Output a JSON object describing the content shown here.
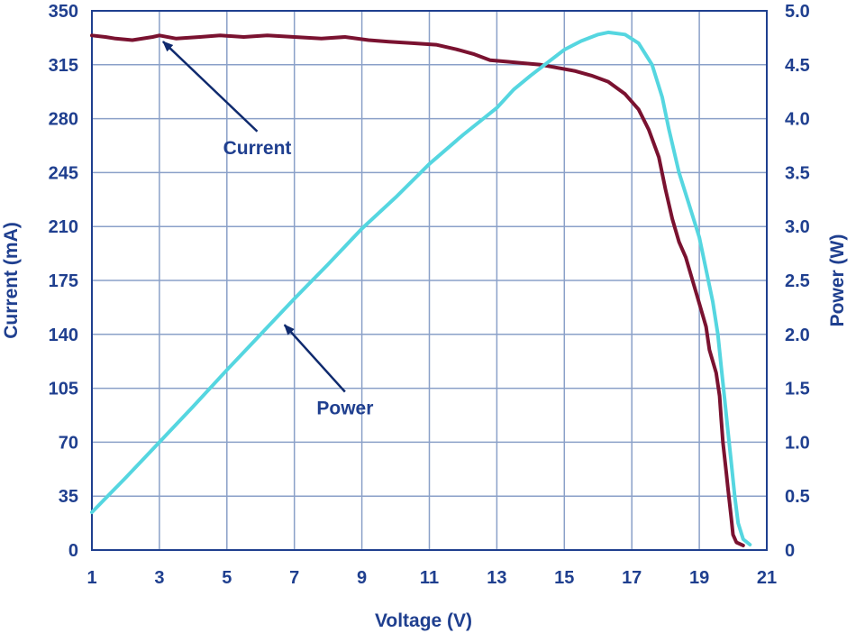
{
  "chart_data": {
    "type": "line",
    "xlabel": "Voltage (V)",
    "ylabel": "Current (mA)",
    "y2label": "Power (W)",
    "xlim": [
      1,
      21
    ],
    "ylim": [
      0,
      350
    ],
    "y2lim": [
      0,
      5.0
    ],
    "x_ticks": [
      "1",
      "3",
      "5",
      "7",
      "9",
      "11",
      "13",
      "15",
      "17",
      "19",
      "21"
    ],
    "y_ticks": [
      "0",
      "35",
      "70",
      "105",
      "140",
      "175",
      "210",
      "245",
      "280",
      "315",
      "350"
    ],
    "y2_ticks": [
      "0",
      "0.5",
      "1.0",
      "1.5",
      "2.0",
      "2.5",
      "3.0",
      "3.5",
      "4.0",
      "4.5",
      "5.0"
    ],
    "grid": true,
    "colors": {
      "axis": "#1f3f8f",
      "grid": "#8aa0c8",
      "current": "#7a1230",
      "power": "#55d6e0",
      "arrow": "#0f2a6e"
    },
    "series": [
      {
        "name": "Current",
        "axis": "left",
        "points": [
          [
            1.0,
            334
          ],
          [
            1.4,
            333
          ],
          [
            1.7,
            332
          ],
          [
            2.2,
            331
          ],
          [
            2.8,
            333
          ],
          [
            3.0,
            334
          ],
          [
            3.5,
            332
          ],
          [
            4.2,
            333
          ],
          [
            4.8,
            334
          ],
          [
            5.5,
            333
          ],
          [
            6.2,
            334
          ],
          [
            7.0,
            333
          ],
          [
            7.8,
            332
          ],
          [
            8.5,
            333
          ],
          [
            9.2,
            331
          ],
          [
            9.8,
            330
          ],
          [
            10.5,
            329
          ],
          [
            11.2,
            328
          ],
          [
            11.8,
            325
          ],
          [
            12.3,
            322
          ],
          [
            12.8,
            318
          ],
          [
            13.3,
            317
          ],
          [
            13.8,
            316
          ],
          [
            14.3,
            315
          ],
          [
            14.8,
            313
          ],
          [
            15.3,
            311
          ],
          [
            15.8,
            308
          ],
          [
            16.3,
            304
          ],
          [
            16.8,
            296
          ],
          [
            17.2,
            286
          ],
          [
            17.5,
            273
          ],
          [
            17.8,
            255
          ],
          [
            18.0,
            234
          ],
          [
            18.2,
            215
          ],
          [
            18.4,
            200
          ],
          [
            18.6,
            190
          ],
          [
            18.8,
            175
          ],
          [
            19.0,
            160
          ],
          [
            19.2,
            145
          ],
          [
            19.3,
            130
          ],
          [
            19.5,
            115
          ],
          [
            19.6,
            100
          ],
          [
            19.65,
            85
          ],
          [
            19.7,
            70
          ],
          [
            19.75,
            60
          ],
          [
            19.8,
            50
          ],
          [
            19.85,
            40
          ],
          [
            19.9,
            30
          ],
          [
            19.95,
            20
          ],
          [
            20.0,
            10
          ],
          [
            20.1,
            5
          ],
          [
            20.3,
            3
          ]
        ]
      },
      {
        "name": "Power",
        "axis": "right",
        "points": [
          [
            1.0,
            0.35
          ],
          [
            2.0,
            0.67
          ],
          [
            3.0,
            1.0
          ],
          [
            4.0,
            1.33
          ],
          [
            5.0,
            1.67
          ],
          [
            6.0,
            2.0
          ],
          [
            7.0,
            2.33
          ],
          [
            8.0,
            2.65
          ],
          [
            9.0,
            2.98
          ],
          [
            10.0,
            3.27
          ],
          [
            11.0,
            3.58
          ],
          [
            12.0,
            3.85
          ],
          [
            13.0,
            4.1
          ],
          [
            13.5,
            4.27
          ],
          [
            14.0,
            4.4
          ],
          [
            14.5,
            4.52
          ],
          [
            15.0,
            4.64
          ],
          [
            15.5,
            4.72
          ],
          [
            16.0,
            4.78
          ],
          [
            16.3,
            4.8
          ],
          [
            16.8,
            4.78
          ],
          [
            17.2,
            4.7
          ],
          [
            17.6,
            4.5
          ],
          [
            17.9,
            4.2
          ],
          [
            18.1,
            3.9
          ],
          [
            18.4,
            3.5
          ],
          [
            18.7,
            3.2
          ],
          [
            19.0,
            2.9
          ],
          [
            19.2,
            2.6
          ],
          [
            19.4,
            2.3
          ],
          [
            19.55,
            2.0
          ],
          [
            19.65,
            1.7
          ],
          [
            19.75,
            1.4
          ],
          [
            19.85,
            1.1
          ],
          [
            19.95,
            0.8
          ],
          [
            20.05,
            0.5
          ],
          [
            20.15,
            0.25
          ],
          [
            20.3,
            0.1
          ],
          [
            20.5,
            0.05
          ]
        ]
      }
    ],
    "annotations": [
      {
        "text": "Current",
        "target_series": "Current",
        "target": [
          3.0,
          333
        ],
        "label_at": [
          5.9,
          260
        ]
      },
      {
        "text": "Power",
        "target_series": "Power",
        "target": [
          6.6,
          2.13
        ],
        "label_at": [
          8.5,
          1.3
        ]
      }
    ]
  }
}
